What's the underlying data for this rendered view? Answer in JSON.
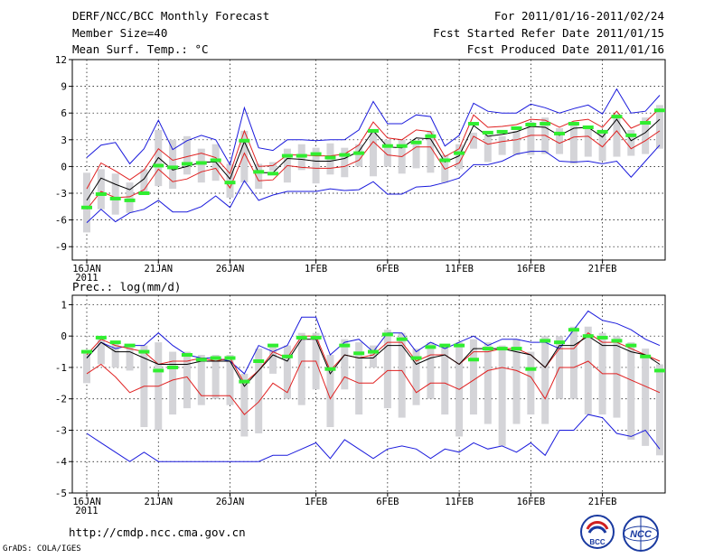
{
  "header": {
    "title": "DERF/NCC/BCC Monthly Forecast",
    "member_size": "Member Size=40",
    "panel1_title": "Mean Surf. Temp.: °C",
    "period": "For 2011/01/16-2011/02/24",
    "fcst_started": "Fcst Started Refer Date 2011/01/15",
    "fcst_produced": "Fcst Produced Date 2011/01/16"
  },
  "footer": {
    "url": "http://cmdp.ncc.cma.gov.cn",
    "grads": "GrADS: COLA/IGES",
    "logo_bcc": "BCC",
    "logo_ncc": "NCC"
  },
  "colors": {
    "max_min": "#1a1adc",
    "band": "#e02020",
    "mean": "#000000",
    "box": "#d4d4d8",
    "obs": "#30ee30",
    "grid": "#000000"
  },
  "chart_data": [
    {
      "type": "line",
      "title": "Mean Surf. Temp.: °C",
      "ylim": [
        -10.5,
        12
      ],
      "yticks": [
        12,
        9,
        6,
        3,
        0,
        -3,
        -6,
        -9
      ],
      "xtick_days": [
        0,
        5,
        10,
        16,
        21,
        26,
        31,
        36
      ],
      "xtick_labels": [
        "16JAN",
        "21JAN",
        "26JAN",
        "1FEB",
        "6FEB",
        "11FEB",
        "16FEB",
        "21FEB"
      ],
      "year_label": "2011",
      "series": [
        {
          "name": "max",
          "values": [
            1.0,
            2.4,
            2.7,
            0.3,
            2.0,
            5.2,
            1.9,
            2.9,
            3.5,
            3.0,
            0.2,
            6.6,
            2.1,
            1.8,
            3.0,
            3.0,
            2.9,
            3.0,
            3.0,
            4.1,
            7.3,
            4.8,
            4.8,
            5.8,
            5.6,
            2.3,
            3.5,
            7.1,
            6.2,
            6.0,
            6.0,
            7.0,
            6.6,
            6.0,
            6.5,
            6.9,
            5.9,
            8.7,
            6.0,
            6.2,
            8.0
          ]
        },
        {
          "name": "upper",
          "values": [
            -2.5,
            0.4,
            -0.5,
            -1.5,
            -0.4,
            2.0,
            0.7,
            1.1,
            1.5,
            1.0,
            -0.8,
            4.0,
            0.0,
            0.1,
            1.3,
            1.3,
            1.2,
            1.2,
            1.4,
            2.4,
            5.0,
            3.2,
            3.0,
            4.1,
            3.9,
            1.1,
            2.0,
            5.8,
            4.4,
            4.5,
            4.7,
            5.3,
            5.2,
            4.4,
            5.1,
            5.3,
            4.4,
            6.2,
            4.3,
            5.0,
            6.5
          ]
        },
        {
          "name": "mean",
          "values": [
            -3.8,
            -1.3,
            -2.0,
            -2.6,
            -1.4,
            1.0,
            -0.4,
            0.0,
            0.5,
            0.5,
            -1.4,
            2.8,
            -0.7,
            -0.7,
            0.9,
            0.8,
            0.6,
            0.6,
            0.9,
            1.7,
            4.0,
            2.2,
            2.1,
            3.2,
            3.1,
            0.5,
            1.2,
            4.6,
            3.4,
            3.6,
            3.9,
            4.5,
            4.4,
            3.5,
            4.3,
            4.4,
            3.3,
            5.3,
            2.9,
            3.8,
            5.3
          ]
        },
        {
          "name": "lower",
          "values": [
            -4.8,
            -2.8,
            -3.5,
            -3.4,
            -2.6,
            -0.3,
            -1.7,
            -1.4,
            -0.6,
            -0.2,
            -2.4,
            1.5,
            -1.6,
            -1.5,
            0.1,
            -0.1,
            -0.2,
            -0.2,
            0.0,
            0.7,
            2.8,
            1.3,
            1.1,
            2.2,
            2.2,
            -0.3,
            0.4,
            3.4,
            2.5,
            2.8,
            3.0,
            3.5,
            3.5,
            2.6,
            3.3,
            3.4,
            2.2,
            4.0,
            2.0,
            2.9,
            4.0
          ]
        },
        {
          "name": "min",
          "values": [
            -6.3,
            -4.8,
            -6.2,
            -5.2,
            -4.8,
            -3.8,
            -5.1,
            -5.1,
            -4.5,
            -3.3,
            -4.6,
            -1.6,
            -3.8,
            -3.2,
            -2.8,
            -2.8,
            -2.8,
            -2.5,
            -2.7,
            -2.6,
            -1.7,
            -3.1,
            -3.1,
            -2.3,
            -2.2,
            -1.8,
            -1.3,
            0.2,
            0.2,
            0.6,
            1.4,
            1.7,
            1.7,
            0.6,
            0.5,
            0.6,
            0.3,
            0.6,
            -1.2,
            0.6,
            2.4
          ]
        },
        {
          "name": "obs",
          "values": [
            -4.6,
            -3.1,
            -3.6,
            -3.8,
            -3.0,
            0.1,
            -0.1,
            0.3,
            0.4,
            0.7,
            -1.8,
            2.9,
            -0.6,
            -0.8,
            1.2,
            1.2,
            1.4,
            1.0,
            1.3,
            1.5,
            4.0,
            2.3,
            2.3,
            2.7,
            3.4,
            0.7,
            1.5,
            4.8,
            3.8,
            3.9,
            4.3,
            4.7,
            4.8,
            3.7,
            4.8,
            4.4,
            3.9,
            5.6,
            3.5,
            4.9,
            6.3
          ]
        },
        {
          "name": "box_top",
          "values": [
            -0.7,
            -0.3,
            -0.8,
            -1.8,
            -0.3,
            4.1,
            3.0,
            3.4,
            2.0,
            2.5,
            0.3,
            4.0,
            0.3,
            0.5,
            2.0,
            2.5,
            2.1,
            2.6,
            2.1,
            2.5,
            4.2,
            3.0,
            3.0,
            2.9,
            4.0,
            1.3,
            2.5,
            3.8,
            3.5,
            3.4,
            4.0,
            5.0,
            5.5,
            4.3,
            5.0,
            4.5,
            3.9,
            5.9,
            4.1,
            5.5,
            6.9
          ]
        },
        {
          "name": "box_bottom",
          "values": [
            -7.4,
            -4.8,
            -5.4,
            -5.2,
            -3.0,
            -2.2,
            -2.5,
            -0.9,
            -1.8,
            -1.6,
            -3.5,
            -1.8,
            -2.5,
            -0.5,
            -1.8,
            -0.4,
            -1.9,
            -0.9,
            -1.2,
            0.0,
            -1.1,
            0.0,
            -0.8,
            -0.2,
            -0.7,
            -1.8,
            -0.3,
            2.0,
            0.5,
            1.3,
            1.3,
            1.3,
            1.4,
            1.4,
            0.3,
            1.1,
            0.6,
            1.1,
            1.2,
            1.4,
            2.0
          ]
        }
      ]
    },
    {
      "type": "line",
      "title": "Prec.: log(mm/d)",
      "ylim": [
        -5,
        1.3
      ],
      "yticks": [
        1,
        0,
        -1,
        -2,
        -3,
        -4,
        -5
      ],
      "xtick_days": [
        0,
        5,
        10,
        16,
        21,
        26,
        31,
        36
      ],
      "xtick_labels": [
        "16JAN",
        "21JAN",
        "26JAN",
        "1FEB",
        "6FEB",
        "11FEB",
        "16FEB",
        "21FEB"
      ],
      "year_label": "2011",
      "series": [
        {
          "name": "max",
          "values": [
            -0.7,
            -0.2,
            -0.4,
            -0.3,
            -0.3,
            0.1,
            -0.3,
            -0.6,
            -0.7,
            -0.7,
            -0.8,
            -1.2,
            -0.3,
            -0.5,
            -0.3,
            0.6,
            0.6,
            -0.6,
            -0.2,
            -0.1,
            -0.5,
            0.1,
            0.1,
            -0.5,
            -0.2,
            -0.4,
            -0.2,
            0.0,
            -0.3,
            -0.1,
            -0.1,
            -0.2,
            -0.2,
            -0.4,
            0.2,
            0.8,
            0.5,
            0.4,
            0.2,
            -0.1,
            -0.3
          ]
        },
        {
          "name": "upper",
          "values": [
            -0.6,
            -0.1,
            -0.3,
            -0.4,
            -0.5,
            -0.9,
            -0.8,
            -0.8,
            -0.7,
            -0.8,
            -0.7,
            -1.5,
            -1.1,
            -0.5,
            -0.7,
            0.0,
            0.0,
            -1.1,
            -0.6,
            -0.7,
            -0.6,
            -0.2,
            -0.2,
            -0.8,
            -0.6,
            -0.6,
            -0.9,
            -0.5,
            -0.5,
            -0.4,
            -0.4,
            -0.6,
            -1.0,
            -0.4,
            -0.4,
            0.1,
            -0.2,
            -0.2,
            -0.4,
            -0.6,
            -0.8
          ]
        },
        {
          "name": "mean",
          "values": [
            -0.7,
            -0.2,
            -0.5,
            -0.5,
            -0.7,
            -0.9,
            -0.9,
            -0.9,
            -0.8,
            -0.8,
            -0.8,
            -1.6,
            -1.1,
            -0.6,
            -0.8,
            -0.1,
            -0.1,
            -1.2,
            -0.6,
            -0.7,
            -0.7,
            -0.3,
            -0.3,
            -0.9,
            -0.7,
            -0.6,
            -0.9,
            -0.4,
            -0.4,
            -0.4,
            -0.5,
            -0.6,
            -1.0,
            -0.3,
            -0.3,
            0.0,
            -0.3,
            -0.3,
            -0.5,
            -0.6,
            -0.9
          ]
        },
        {
          "name": "lower",
          "values": [
            -1.2,
            -0.9,
            -1.3,
            -1.8,
            -1.6,
            -1.6,
            -1.4,
            -1.3,
            -1.9,
            -1.9,
            -1.9,
            -2.5,
            -2.1,
            -1.5,
            -1.8,
            -0.8,
            -0.8,
            -2.0,
            -1.3,
            -1.5,
            -1.5,
            -1.1,
            -1.1,
            -1.8,
            -1.5,
            -1.5,
            -1.7,
            -1.4,
            -1.1,
            -1.0,
            -1.1,
            -1.3,
            -2.0,
            -1.0,
            -1.0,
            -0.8,
            -1.2,
            -1.2,
            -1.4,
            -1.6,
            -1.8
          ]
        },
        {
          "name": "min",
          "values": [
            -3.1,
            -3.4,
            -3.7,
            -4.0,
            -3.7,
            -4.0,
            -4.0,
            -4.0,
            -4.0,
            -4.0,
            -4.0,
            -4.0,
            -4.0,
            -3.8,
            -3.8,
            -3.6,
            -3.4,
            -3.9,
            -3.3,
            -3.6,
            -3.9,
            -3.6,
            -3.5,
            -3.6,
            -3.9,
            -3.6,
            -3.7,
            -3.4,
            -3.6,
            -3.5,
            -3.7,
            -3.4,
            -3.8,
            -3.0,
            -3.0,
            -2.5,
            -2.6,
            -3.1,
            -3.2,
            -3.0,
            -3.6
          ]
        },
        {
          "name": "obs",
          "values": [
            -0.5,
            -0.05,
            -0.2,
            -0.3,
            -0.5,
            -1.1,
            -1.0,
            -0.6,
            -0.75,
            -0.7,
            -0.7,
            -1.45,
            -0.8,
            -0.3,
            -0.65,
            -0.05,
            -0.05,
            -1.05,
            -0.3,
            -0.55,
            -0.5,
            0.05,
            -0.1,
            -0.7,
            -0.35,
            -0.3,
            -0.3,
            -0.75,
            -0.4,
            -0.4,
            -0.4,
            -1.05,
            -0.15,
            -0.2,
            0.2,
            0.0,
            -0.05,
            -0.15,
            -0.3,
            -0.65,
            -1.1
          ]
        },
        {
          "name": "box_top",
          "values": [
            -0.5,
            -0.1,
            -0.2,
            -0.3,
            -0.3,
            -0.2,
            -0.5,
            -0.5,
            -0.6,
            -0.6,
            -0.6,
            -1.2,
            -0.4,
            -0.3,
            -0.3,
            0.1,
            0.1,
            -0.6,
            -0.1,
            -0.2,
            -0.3,
            0.2,
            0.1,
            -0.4,
            -0.2,
            -0.3,
            -0.2,
            -0.1,
            -0.2,
            -0.3,
            -0.1,
            -0.5,
            0.0,
            0.0,
            0.3,
            0.3,
            0.1,
            0.0,
            -0.2,
            -0.4,
            -0.9
          ]
        },
        {
          "name": "box_bottom",
          "values": [
            -1.5,
            -0.9,
            -1.0,
            -1.1,
            -2.9,
            -3.0,
            -2.5,
            -2.3,
            -2.2,
            -2.0,
            -2.2,
            -3.2,
            -3.1,
            -1.2,
            -2.0,
            -2.2,
            -1.7,
            -2.9,
            -1.7,
            -2.5,
            -1.0,
            -2.3,
            -2.6,
            -2.2,
            -2.0,
            -2.5,
            -3.2,
            -2.5,
            -2.8,
            -3.5,
            -2.8,
            -2.5,
            -2.8,
            -2.0,
            -2.0,
            -2.5,
            -2.5,
            -2.6,
            -3.3,
            -3.5,
            -3.8
          ]
        }
      ]
    }
  ]
}
